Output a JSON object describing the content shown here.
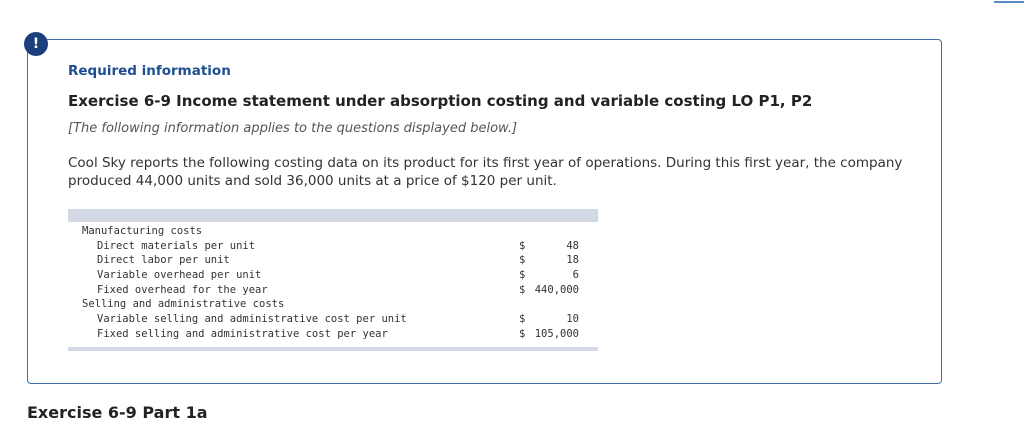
{
  "badge": "!",
  "section_label": "Required information",
  "title": "Exercise 6-9 Income statement under absorption costing and variable costing LO P1, P2",
  "note": "[The following information applies to the questions displayed below.]",
  "paragraph": "Cool Sky reports the following costing data on its product for its first year of operations. During this first year, the company produced 44,000 units and sold 36,000 units at a price of $120 per unit.",
  "table": {
    "rows": [
      [
        "Manufacturing costs"
      ],
      [
        "Direct materials per unit",
        "$",
        "48"
      ],
      [
        "Direct labor per unit",
        "$",
        "18"
      ],
      [
        "Variable overhead per unit",
        "$",
        "6"
      ],
      [
        "Fixed overhead for the year",
        "$",
        "440,000"
      ],
      [
        "Selling and administrative costs"
      ],
      [
        "Variable selling and administrative cost per unit",
        "$",
        "10"
      ],
      [
        "Fixed selling and administrative cost per year",
        "$",
        "105,000"
      ]
    ]
  },
  "part_heading": "Exercise 6-9 Part 1a"
}
